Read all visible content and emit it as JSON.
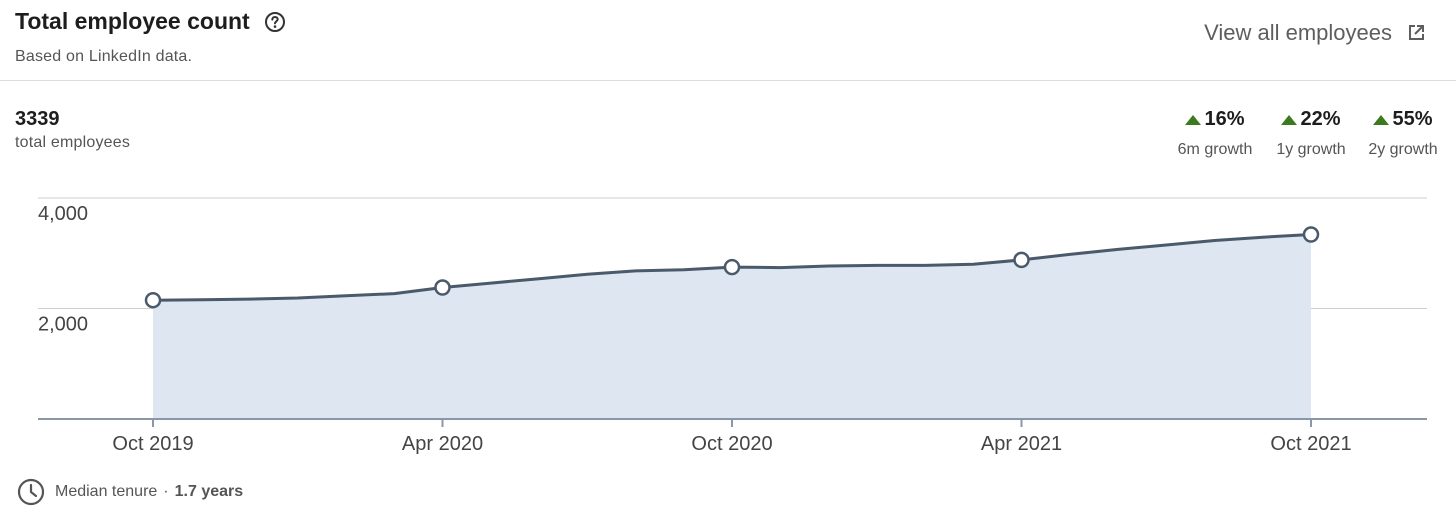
{
  "header": {
    "title": "Total employee count",
    "subtitle": "Based on LinkedIn data.",
    "view_all": "View all employees"
  },
  "summary": {
    "count": "3339",
    "count_label": "total employees"
  },
  "growth": [
    {
      "value": "16%",
      "label": "6m growth"
    },
    {
      "value": "22%",
      "label": "1y growth"
    },
    {
      "value": "55%",
      "label": "2y growth"
    }
  ],
  "colors": {
    "line": "#4a5a6b",
    "fill": "#dde6f1",
    "growth_up": "#3b7a1e"
  },
  "tenure": {
    "label": "Median tenure",
    "separator": "·",
    "value": "1.7 years"
  },
  "chart_data": {
    "type": "area",
    "x": [
      "2019-10",
      "2019-11",
      "2019-12",
      "2020-01",
      "2020-02",
      "2020-03",
      "2020-04",
      "2020-05",
      "2020-06",
      "2020-07",
      "2020-08",
      "2020-09",
      "2020-10",
      "2020-11",
      "2020-12",
      "2021-01",
      "2021-02",
      "2021-03",
      "2021-04",
      "2021-05",
      "2021-06",
      "2021-07",
      "2021-08",
      "2021-09",
      "2021-10"
    ],
    "values": [
      2150,
      2160,
      2170,
      2190,
      2230,
      2270,
      2380,
      2460,
      2540,
      2620,
      2680,
      2700,
      2750,
      2740,
      2770,
      2780,
      2780,
      2800,
      2880,
      2980,
      3070,
      3150,
      3230,
      3290,
      3339
    ],
    "marker_x": [
      "2019-10",
      "2020-04",
      "2020-10",
      "2021-04",
      "2021-10"
    ],
    "tick_labels": [
      "Oct 2019",
      "Apr 2020",
      "Oct 2020",
      "Apr 2021",
      "Oct 2021"
    ],
    "y_ticks": [
      2000,
      4000
    ],
    "y_tick_labels": [
      "2,000",
      "4,000"
    ],
    "ylim": [
      0,
      4000
    ],
    "grid": true,
    "legend": "none"
  }
}
